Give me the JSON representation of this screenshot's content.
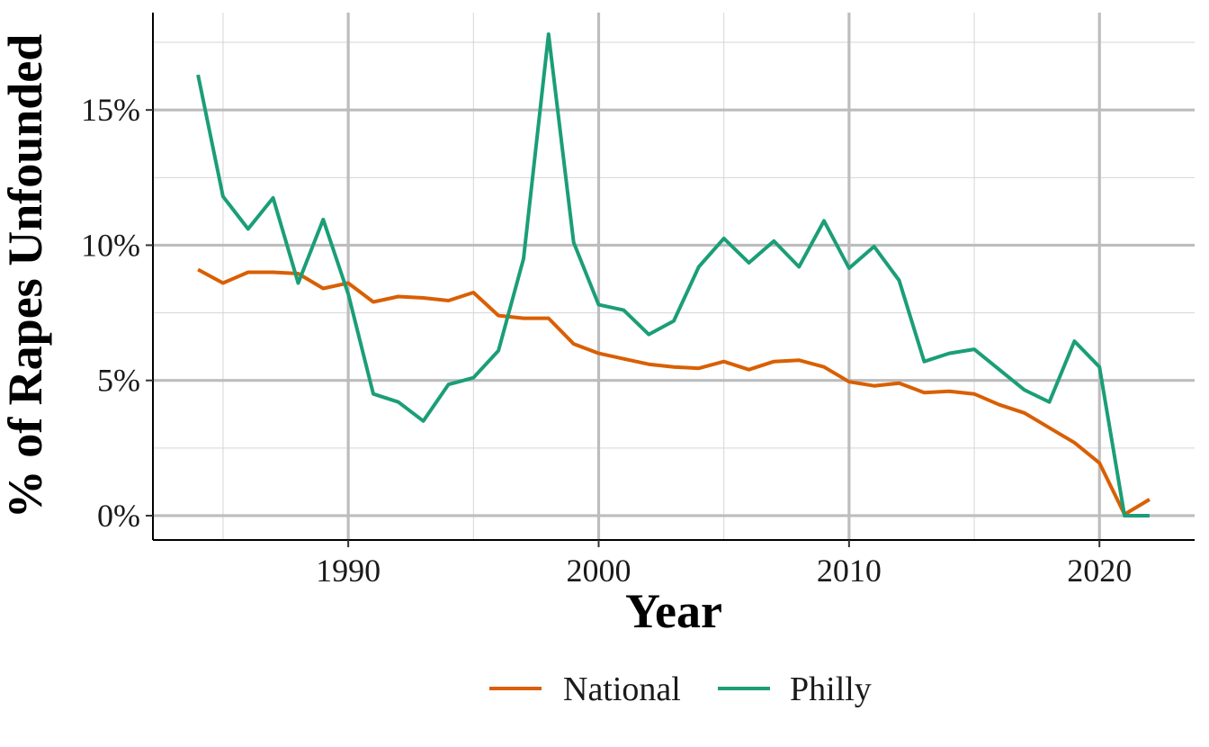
{
  "chart_data": {
    "type": "line",
    "title": "",
    "xlabel": "Year",
    "ylabel": "% of Rapes Unfounded",
    "xlim": [
      1982.2,
      2023.8
    ],
    "ylim": [
      -0.9,
      18.6
    ],
    "x_ticks": [
      1990,
      2000,
      2010,
      2020
    ],
    "x_tick_labels": [
      "1990",
      "2000",
      "2010",
      "2020"
    ],
    "y_ticks": [
      0,
      5,
      10,
      15
    ],
    "y_tick_labels": [
      "0%",
      "5%",
      "10%",
      "15%"
    ],
    "grid": true,
    "legend_position": "bottom",
    "x": [
      1984,
      1985,
      1986,
      1987,
      1988,
      1989,
      1990,
      1991,
      1992,
      1993,
      1994,
      1995,
      1996,
      1997,
      1998,
      1999,
      2000,
      2001,
      2002,
      2003,
      2004,
      2005,
      2006,
      2007,
      2008,
      2009,
      2010,
      2011,
      2012,
      2013,
      2014,
      2015,
      2016,
      2017,
      2018,
      2019,
      2020,
      2021,
      2022
    ],
    "series": [
      {
        "name": "National",
        "color": "#D95F02",
        "values": [
          9.1,
          8.6,
          9.0,
          9.0,
          8.95,
          8.4,
          8.6,
          7.9,
          8.1,
          8.05,
          7.95,
          8.25,
          7.4,
          7.3,
          7.3,
          6.35,
          6.0,
          5.8,
          5.6,
          5.5,
          5.45,
          5.7,
          5.4,
          5.7,
          5.75,
          5.5,
          4.95,
          4.8,
          4.9,
          4.55,
          4.6,
          4.5,
          4.1,
          3.8,
          3.25,
          2.7,
          1.95,
          0.05,
          0.6
        ]
      },
      {
        "name": "Philly",
        "color": "#1B9E77",
        "values": [
          16.3,
          11.8,
          10.6,
          11.75,
          8.6,
          10.95,
          8.2,
          4.5,
          4.2,
          3.5,
          4.85,
          5.1,
          6.1,
          9.5,
          17.8,
          10.1,
          7.8,
          7.6,
          6.7,
          7.2,
          9.2,
          10.25,
          9.35,
          10.15,
          9.2,
          10.9,
          9.15,
          9.95,
          8.7,
          5.7,
          6.0,
          6.15,
          5.4,
          4.65,
          4.2,
          6.45,
          5.5,
          0.0,
          0.0
        ]
      }
    ]
  }
}
